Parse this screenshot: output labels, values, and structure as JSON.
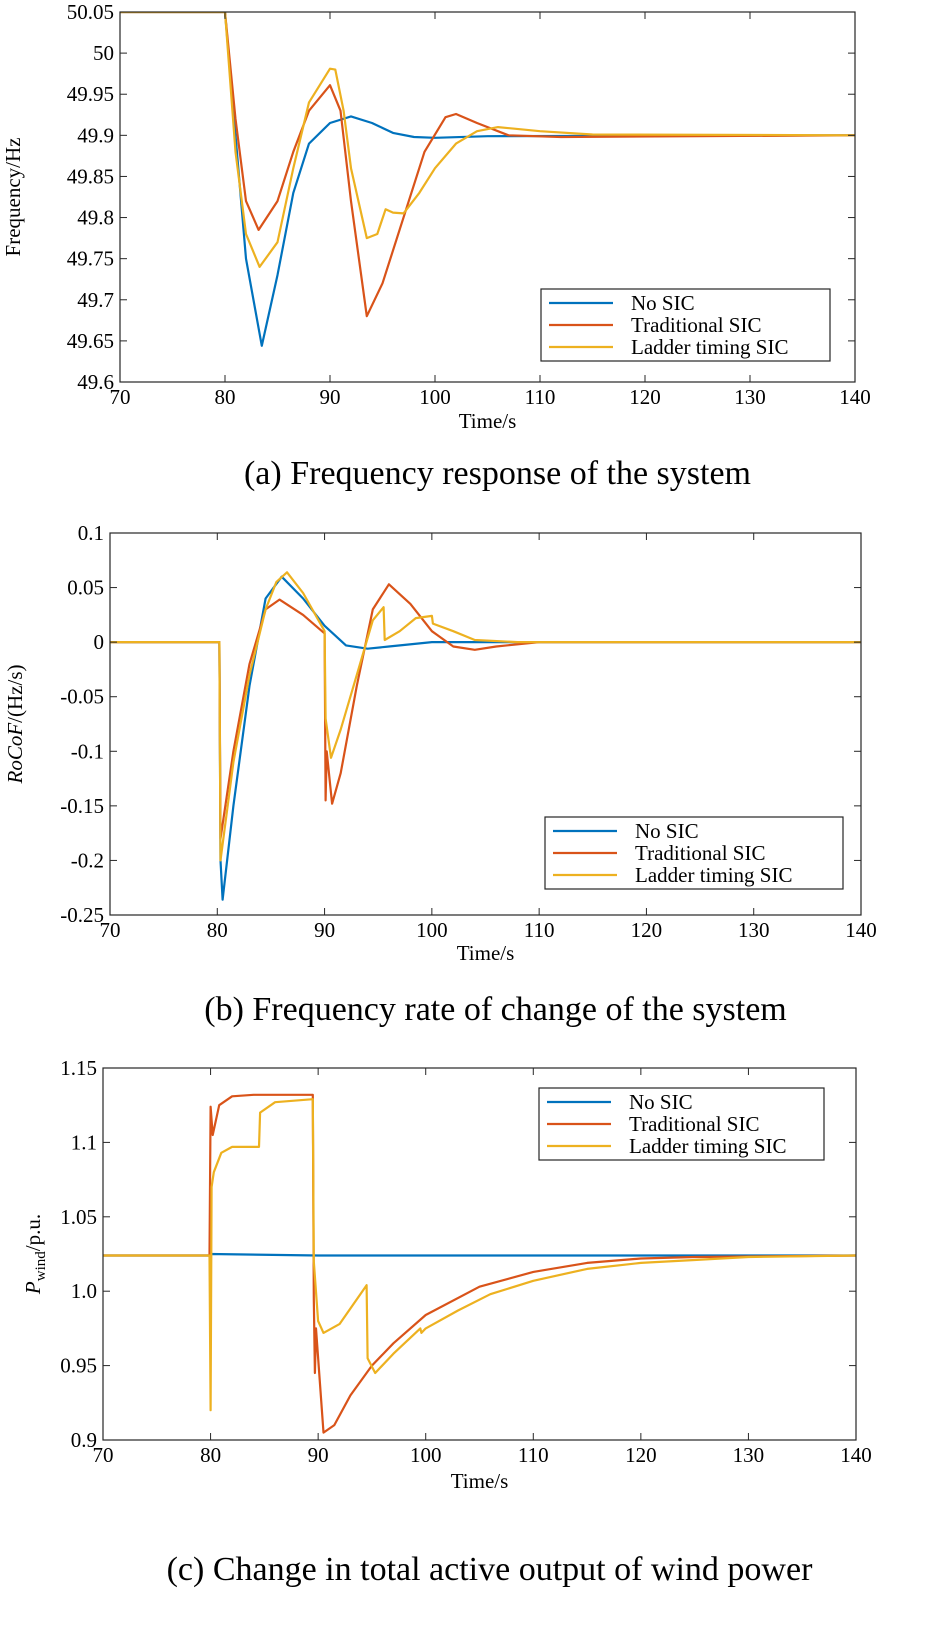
{
  "chart_data": [
    {
      "type": "line",
      "caption": "(a) Frequency response of the system",
      "xlabel": "Time/s",
      "ylabel": "Frequency/Hz",
      "xlim": [
        70,
        140
      ],
      "ylim": [
        49.6,
        50.05
      ],
      "xticks": [
        70,
        80,
        90,
        100,
        110,
        120,
        130,
        140
      ],
      "yticks": [
        49.6,
        49.65,
        49.7,
        49.75,
        49.8,
        49.85,
        49.9,
        49.95,
        50,
        50.05
      ],
      "xtick_labels": [
        "70",
        "80",
        "90",
        "100",
        "110",
        "120",
        "130",
        "140"
      ],
      "ytick_labels": [
        "49.6",
        "49.65",
        "49.7",
        "49.75",
        "49.8",
        "49.85",
        "49.9",
        "49.95",
        "50",
        "50.05"
      ],
      "legend_pos": "bottom-right",
      "legend": [
        "No SIC",
        "Traditional SIC",
        "Ladder timing SIC"
      ],
      "series": [
        {
          "name": "No SIC",
          "color": "#0072BD",
          "points": [
            [
              70,
              50.05
            ],
            [
              80,
              50.05
            ],
            [
              81,
              49.9
            ],
            [
              82,
              49.75
            ],
            [
              83.5,
              49.644
            ],
            [
              85,
              49.73
            ],
            [
              86.5,
              49.83
            ],
            [
              88,
              49.89
            ],
            [
              90,
              49.915
            ],
            [
              92,
              49.923
            ],
            [
              94,
              49.915
            ],
            [
              96,
              49.903
            ],
            [
              98,
              49.898
            ],
            [
              100,
              49.897
            ],
            [
              105,
              49.899
            ],
            [
              140,
              49.9
            ]
          ]
        },
        {
          "name": "Traditional SIC",
          "color": "#D95319",
          "points": [
            [
              70,
              50.05
            ],
            [
              80,
              50.05
            ],
            [
              81,
              49.92
            ],
            [
              82,
              49.82
            ],
            [
              83.2,
              49.785
            ],
            [
              85,
              49.82
            ],
            [
              86.5,
              49.88
            ],
            [
              88,
              49.93
            ],
            [
              90,
              49.961
            ],
            [
              91,
              49.93
            ],
            [
              92,
              49.82
            ],
            [
              93.5,
              49.68
            ],
            [
              95,
              49.72
            ],
            [
              97,
              49.8
            ],
            [
              99,
              49.88
            ],
            [
              101,
              49.922
            ],
            [
              102,
              49.926
            ],
            [
              104,
              49.915
            ],
            [
              107,
              49.9
            ],
            [
              112,
              49.898
            ],
            [
              140,
              49.9
            ]
          ]
        },
        {
          "name": "Ladder timing SIC",
          "color": "#EDB120",
          "points": [
            [
              70,
              50.05
            ],
            [
              80,
              50.05
            ],
            [
              81,
              49.88
            ],
            [
              82,
              49.78
            ],
            [
              83.3,
              49.74
            ],
            [
              85,
              49.77
            ],
            [
              86.5,
              49.86
            ],
            [
              88,
              49.94
            ],
            [
              90,
              49.981
            ],
            [
              90.5,
              49.98
            ],
            [
              91.3,
              49.93
            ],
            [
              92,
              49.86
            ],
            [
              93.5,
              49.775
            ],
            [
              94.5,
              49.78
            ],
            [
              95.3,
              49.81
            ],
            [
              96,
              49.806
            ],
            [
              97,
              49.805
            ],
            [
              98.5,
              49.83
            ],
            [
              100,
              49.86
            ],
            [
              102,
              49.89
            ],
            [
              104,
              49.905
            ],
            [
              106,
              49.91
            ],
            [
              110,
              49.905
            ],
            [
              115,
              49.901
            ],
            [
              140,
              49.9
            ]
          ]
        }
      ]
    },
    {
      "type": "line",
      "caption": "(b) Frequency rate of change of the system",
      "xlabel": "Time/s",
      "ylabel": "RoCoF/(Hz/s)",
      "xlim": [
        70,
        140
      ],
      "ylim": [
        -0.25,
        0.1
      ],
      "xticks": [
        70,
        80,
        90,
        100,
        110,
        120,
        130,
        140
      ],
      "yticks": [
        -0.25,
        -0.2,
        -0.15,
        -0.1,
        -0.05,
        0,
        0.05,
        0.1
      ],
      "xtick_labels": [
        "70",
        "80",
        "90",
        "100",
        "110",
        "120",
        "130",
        "140"
      ],
      "ytick_labels": [
        "-0.25",
        "-0.2",
        "-0.15",
        "-0.1",
        "-0.05",
        "0",
        "0.05",
        "0.1"
      ],
      "legend_pos": "bottom-right",
      "legend": [
        "No SIC",
        "Traditional SIC",
        "Ladder timing SIC"
      ],
      "series": [
        {
          "name": "No SIC",
          "color": "#0072BD",
          "points": [
            [
              70,
              0
            ],
            [
              80.2,
              0
            ],
            [
              80.3,
              -0.2
            ],
            [
              80.5,
              -0.236
            ],
            [
              81.5,
              -0.15
            ],
            [
              83,
              -0.04
            ],
            [
              84.5,
              0.04
            ],
            [
              86,
              0.06
            ],
            [
              88,
              0.04
            ],
            [
              90,
              0.015
            ],
            [
              92,
              -0.003
            ],
            [
              94,
              -0.006
            ],
            [
              96,
              -0.004
            ],
            [
              100,
              0.0
            ],
            [
              140,
              0
            ]
          ]
        },
        {
          "name": "Traditional SIC",
          "color": "#D95319",
          "points": [
            [
              70,
              0
            ],
            [
              80.2,
              0
            ],
            [
              80.3,
              -0.18
            ],
            [
              81.5,
              -0.1
            ],
            [
              83,
              -0.02
            ],
            [
              84.5,
              0.03
            ],
            [
              85.8,
              0.039
            ],
            [
              88,
              0.025
            ],
            [
              90,
              0.008
            ],
            [
              90.1,
              -0.145
            ],
            [
              90.2,
              -0.1
            ],
            [
              90.7,
              -0.148
            ],
            [
              91.5,
              -0.12
            ],
            [
              93,
              -0.04
            ],
            [
              94.5,
              0.03
            ],
            [
              96,
              0.053
            ],
            [
              98,
              0.035
            ],
            [
              100,
              0.01
            ],
            [
              102,
              -0.004
            ],
            [
              104,
              -0.007
            ],
            [
              106,
              -0.004
            ],
            [
              110,
              0
            ],
            [
              140,
              0
            ]
          ]
        },
        {
          "name": "Ladder timing SIC",
          "color": "#EDB120",
          "points": [
            [
              70,
              0
            ],
            [
              80.2,
              0
            ],
            [
              80.3,
              -0.2
            ],
            [
              81.5,
              -0.11
            ],
            [
              83,
              -0.03
            ],
            [
              84.5,
              0.03
            ],
            [
              85.5,
              0.055
            ],
            [
              86.5,
              0.064
            ],
            [
              88,
              0.045
            ],
            [
              90,
              0.01
            ],
            [
              90.1,
              -0.07
            ],
            [
              90.6,
              -0.106
            ],
            [
              91.5,
              -0.08
            ],
            [
              93,
              -0.03
            ],
            [
              94.5,
              0.02
            ],
            [
              95.5,
              0.032
            ],
            [
              95.6,
              0.002
            ],
            [
              97,
              0.01
            ],
            [
              98.5,
              0.022
            ],
            [
              100,
              0.024
            ],
            [
              100.1,
              0.017
            ],
            [
              102,
              0.01
            ],
            [
              104,
              0.002
            ],
            [
              108,
              0
            ],
            [
              140,
              0
            ]
          ]
        }
      ]
    },
    {
      "type": "line",
      "caption": "(c) Change in total active output of wind power",
      "xlabel": "Time/s",
      "ylabel": "P_wind/p.u.",
      "ylabel_main": "P",
      "ylabel_sub": "wind",
      "ylabel_rest": "/p.u.",
      "xlim": [
        70,
        140
      ],
      "ylim": [
        0.9,
        1.15
      ],
      "xticks": [
        70,
        80,
        90,
        100,
        110,
        120,
        130,
        140
      ],
      "yticks": [
        0.9,
        0.95,
        1.0,
        1.05,
        1.1,
        1.15
      ],
      "xtick_labels": [
        "70",
        "80",
        "90",
        "100",
        "110",
        "120",
        "130",
        "140"
      ],
      "ytick_labels": [
        "0.9",
        "0.95",
        "1.0",
        "1.05",
        "1.1",
        "1.15"
      ],
      "legend_pos": "top-right",
      "legend": [
        "No SIC",
        "Traditional SIC",
        "Ladder timing SIC"
      ],
      "series": [
        {
          "name": "No SIC",
          "color": "#0072BD",
          "points": [
            [
              70,
              1.024
            ],
            [
              79.9,
              1.024
            ],
            [
              80,
              1.025
            ],
            [
              90,
              1.024
            ],
            [
              140,
              1.024
            ]
          ]
        },
        {
          "name": "Traditional SIC",
          "color": "#D95319",
          "points": [
            [
              70,
              1.024
            ],
            [
              79.9,
              1.024
            ],
            [
              80,
              1.124
            ],
            [
              80.2,
              1.105
            ],
            [
              80.8,
              1.125
            ],
            [
              82,
              1.131
            ],
            [
              84,
              1.132
            ],
            [
              89.5,
              1.132
            ],
            [
              89.6,
              0.995
            ],
            [
              89.7,
              0.945
            ],
            [
              89.8,
              0.975
            ],
            [
              90.5,
              0.905
            ],
            [
              91.5,
              0.91
            ],
            [
              93,
              0.93
            ],
            [
              95,
              0.95
            ],
            [
              97,
              0.965
            ],
            [
              100,
              0.984
            ],
            [
              105,
              1.003
            ],
            [
              110,
              1.013
            ],
            [
              115,
              1.019
            ],
            [
              120,
              1.022
            ],
            [
              125,
              1.023
            ],
            [
              140,
              1.024
            ]
          ]
        },
        {
          "name": "Ladder timing SIC",
          "color": "#EDB120",
          "points": [
            [
              70,
              1.024
            ],
            [
              79.9,
              1.024
            ],
            [
              80,
              0.92
            ],
            [
              80.1,
              1.07
            ],
            [
              80.3,
              1.08
            ],
            [
              81,
              1.093
            ],
            [
              82,
              1.097
            ],
            [
              84.5,
              1.097
            ],
            [
              84.6,
              1.12
            ],
            [
              86,
              1.127
            ],
            [
              89.5,
              1.129
            ],
            [
              89.6,
              1.02
            ],
            [
              90,
              0.98
            ],
            [
              90.5,
              0.972
            ],
            [
              92,
              0.978
            ],
            [
              94.5,
              1.004
            ],
            [
              94.6,
              0.955
            ],
            [
              95.3,
              0.945
            ],
            [
              97,
              0.958
            ],
            [
              99.5,
              0.975
            ],
            [
              99.6,
              0.972
            ],
            [
              100,
              0.975
            ],
            [
              103,
              0.987
            ],
            [
              106,
              0.998
            ],
            [
              110,
              1.007
            ],
            [
              115,
              1.015
            ],
            [
              120,
              1.019
            ],
            [
              125,
              1.021
            ],
            [
              130,
              1.023
            ],
            [
              140,
              1.024
            ]
          ]
        }
      ]
    }
  ]
}
